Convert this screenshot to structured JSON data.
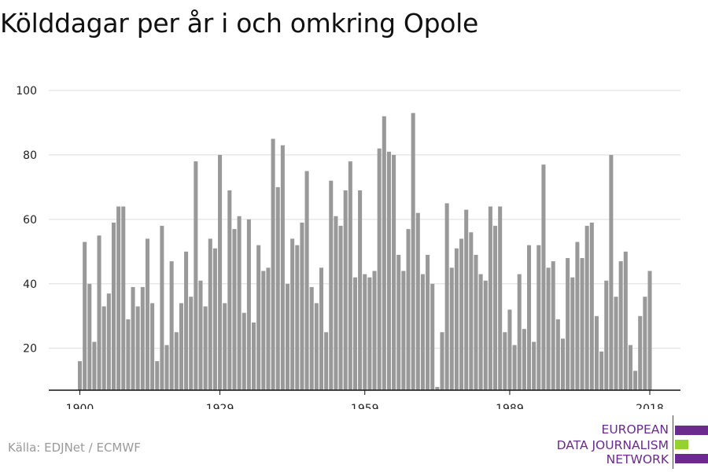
{
  "title": "Kölddagar per år i och omkring Opole",
  "source": "Källa: EDJNet / ECMWF",
  "logo": {
    "lines": [
      "EUROPEAN",
      "DATA JOURNALISM",
      "NETWORK"
    ],
    "colors": {
      "purple": "#6b2a8e",
      "green": "#96d22d"
    }
  },
  "colors": {
    "bar": "#999999",
    "grid": "#dddddd",
    "axis": "#111111"
  },
  "chart_data": {
    "type": "bar",
    "title": "Kölddagar per år i och omkring Opole",
    "xlabel": "",
    "ylabel": "",
    "x_ticks": [
      1900,
      1929,
      1959,
      1989,
      2018
    ],
    "y_ticks": [
      20,
      40,
      60,
      80,
      100
    ],
    "ylim": [
      7,
      100
    ],
    "grid": true,
    "years": [
      1900,
      1901,
      1902,
      1903,
      1904,
      1905,
      1906,
      1907,
      1908,
      1909,
      1910,
      1911,
      1912,
      1913,
      1914,
      1915,
      1916,
      1917,
      1918,
      1919,
      1920,
      1921,
      1922,
      1923,
      1924,
      1925,
      1926,
      1927,
      1928,
      1929,
      1930,
      1931,
      1932,
      1933,
      1934,
      1935,
      1936,
      1937,
      1938,
      1939,
      1940,
      1941,
      1942,
      1943,
      1944,
      1945,
      1946,
      1947,
      1948,
      1949,
      1950,
      1951,
      1952,
      1953,
      1954,
      1955,
      1956,
      1957,
      1958,
      1959,
      1960,
      1961,
      1962,
      1963,
      1964,
      1965,
      1966,
      1967,
      1968,
      1969,
      1970,
      1971,
      1972,
      1973,
      1974,
      1975,
      1976,
      1977,
      1978,
      1979,
      1980,
      1981,
      1982,
      1983,
      1984,
      1985,
      1986,
      1987,
      1988,
      1989,
      1990,
      1991,
      1992,
      1993,
      1994,
      1995,
      1996,
      1997,
      1998,
      1999,
      2000,
      2001,
      2002,
      2003,
      2004,
      2005,
      2006,
      2007,
      2008,
      2009,
      2010,
      2011,
      2012,
      2013,
      2014,
      2015,
      2016,
      2017,
      2018
    ],
    "values": [
      16,
      53,
      40,
      22,
      55,
      33,
      37,
      59,
      64,
      64,
      29,
      39,
      33,
      39,
      54,
      34,
      16,
      58,
      21,
      47,
      25,
      34,
      50,
      36,
      78,
      41,
      33,
      54,
      51,
      80,
      34,
      69,
      57,
      61,
      31,
      60,
      28,
      52,
      44,
      45,
      85,
      70,
      83,
      40,
      54,
      52,
      59,
      75,
      39,
      34,
      45,
      25,
      72,
      61,
      58,
      69,
      78,
      42,
      69,
      43,
      42,
      44,
      82,
      92,
      81,
      80,
      49,
      44,
      57,
      93,
      62,
      43,
      49,
      40,
      8,
      25,
      65,
      45,
      51,
      54,
      63,
      56,
      49,
      43,
      41,
      64,
      58,
      64,
      25,
      32,
      21,
      43,
      26,
      52,
      22,
      52,
      77,
      45,
      47,
      29,
      23,
      48,
      42,
      53,
      48,
      58,
      59,
      30,
      19,
      41,
      80,
      36,
      47,
      50,
      21,
      13,
      30,
      36,
      44
    ]
  }
}
